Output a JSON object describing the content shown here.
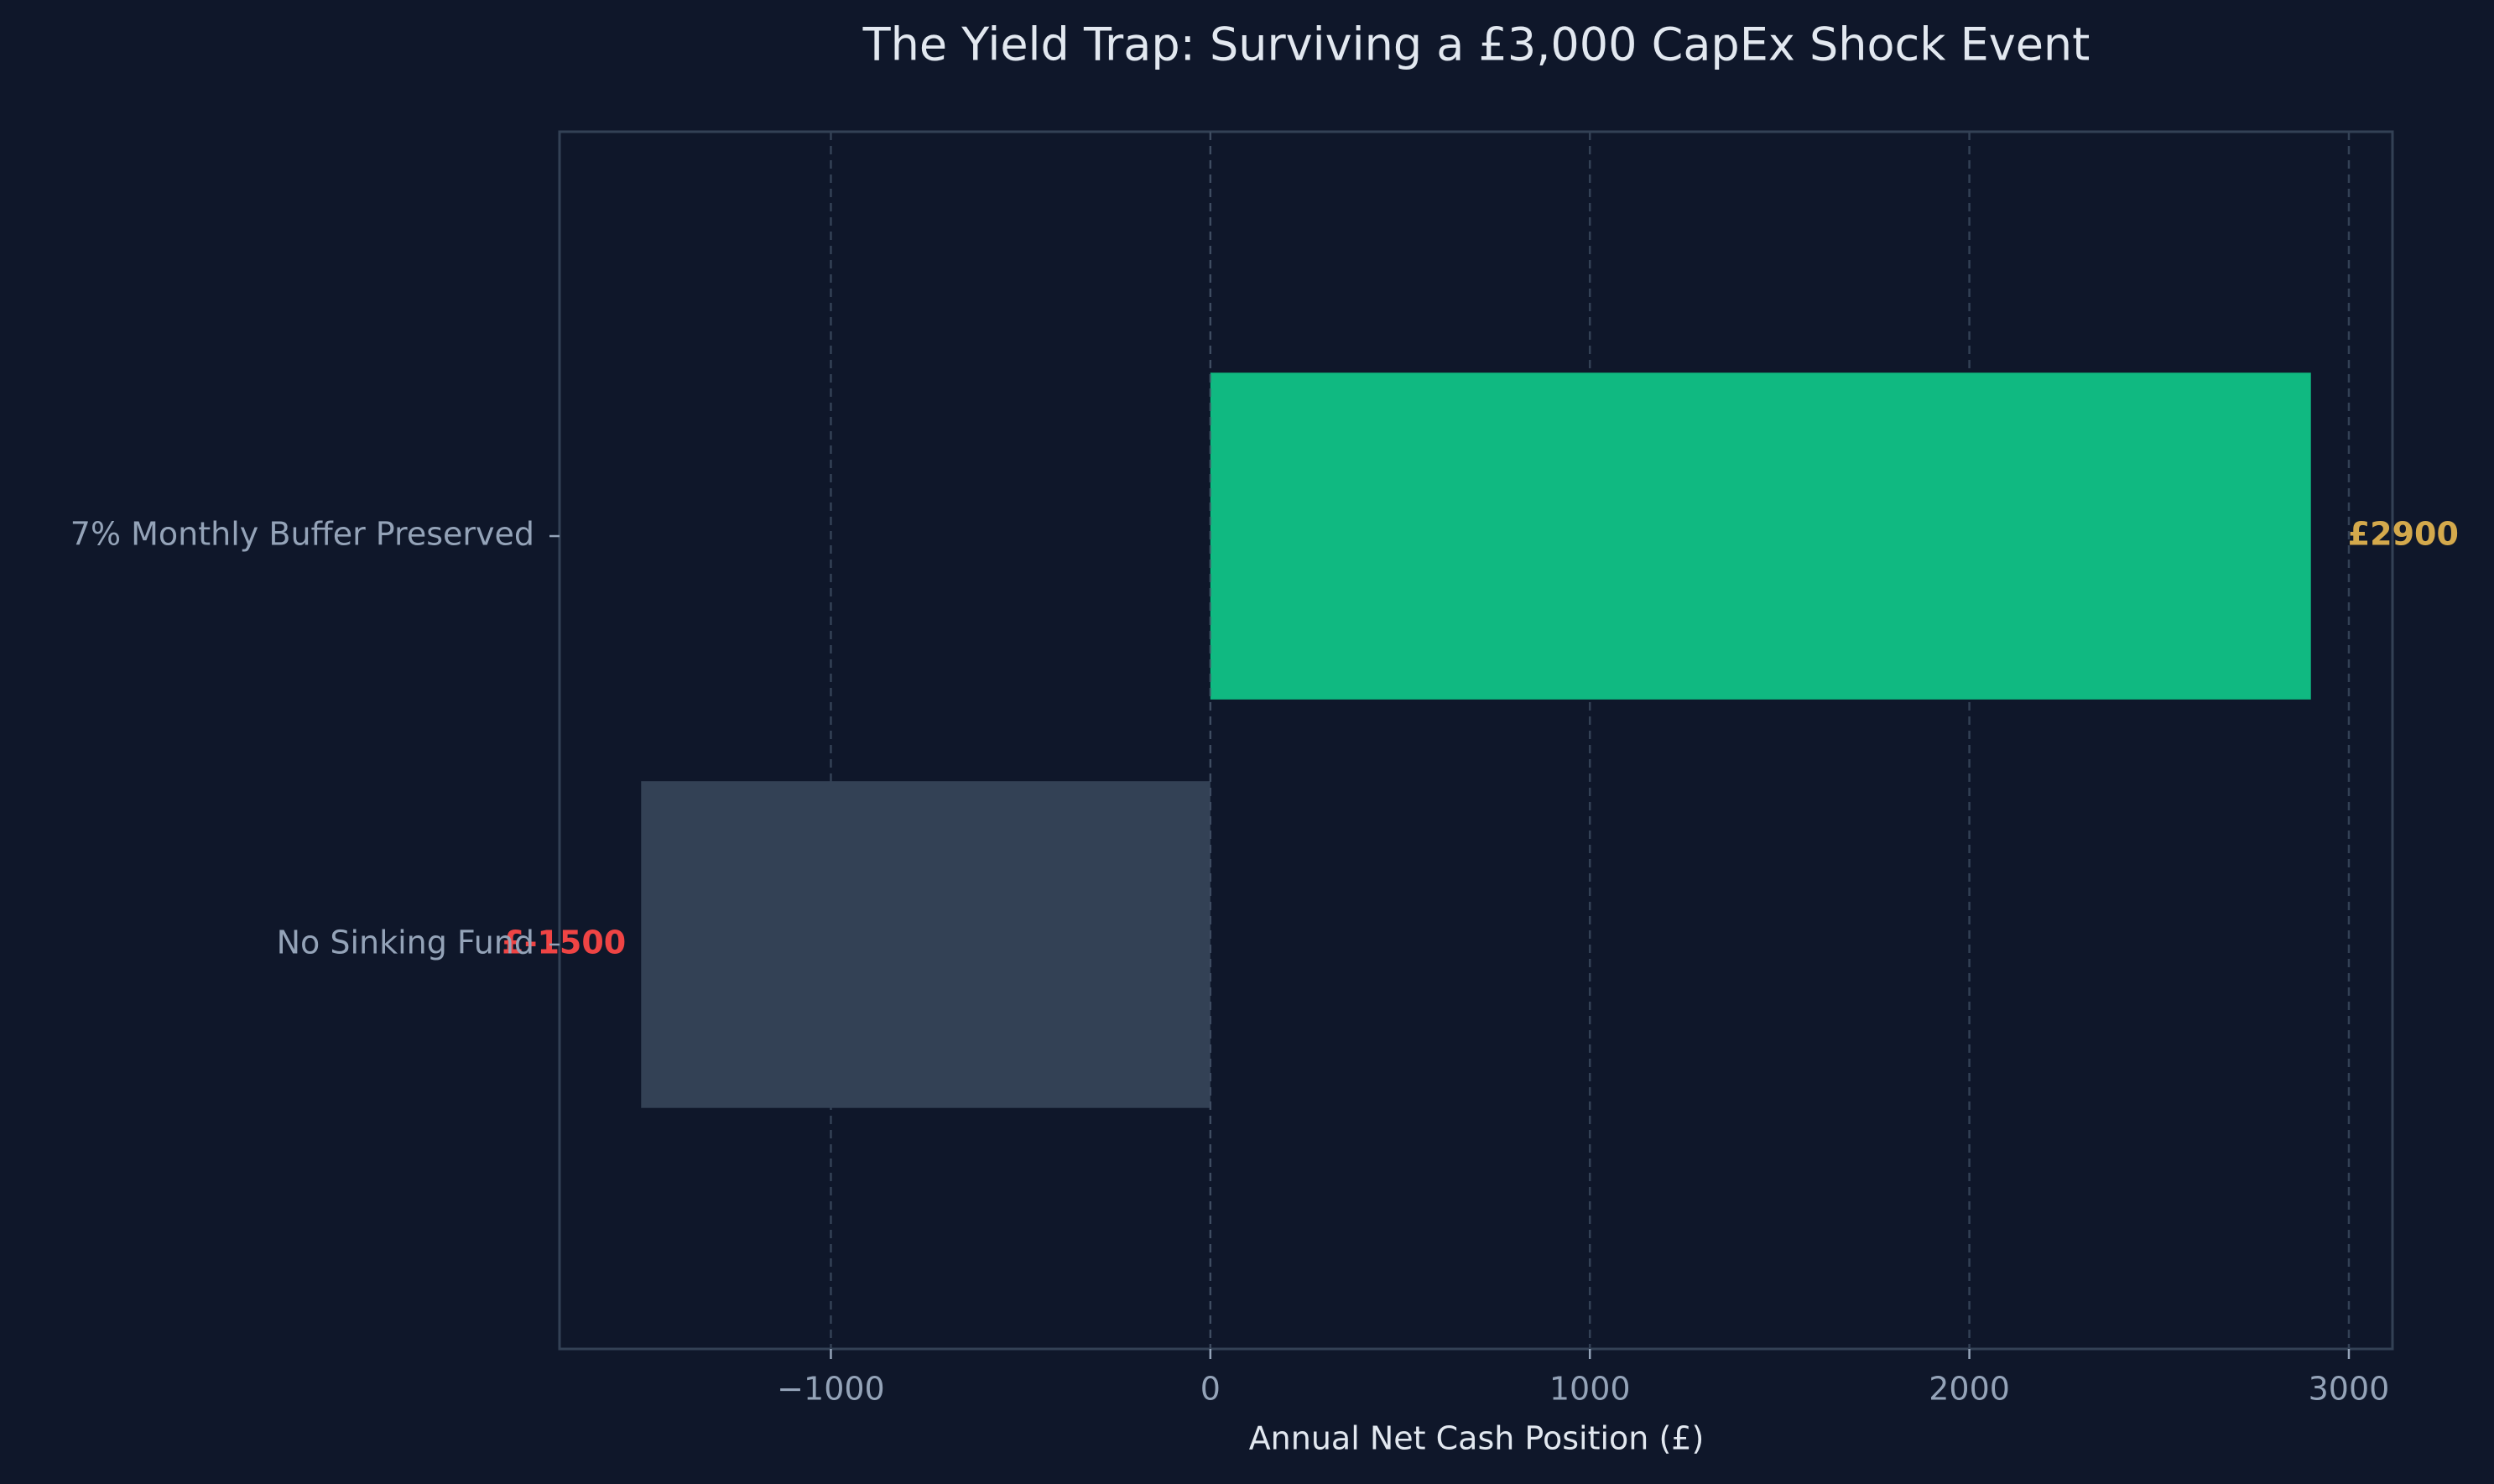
{
  "chart_data": {
    "type": "barh",
    "title": "The Yield Trap: Surviving a £3,000 CapEx Shock Event",
    "xlabel": "Annual Net Cash Position (£)",
    "categories": [
      "No Sinking Fund",
      "7% Monthly Buffer Preserved"
    ],
    "values": [
      -1500,
      2900
    ],
    "value_labels": [
      "£-1500",
      "£2900"
    ],
    "colors": [
      "#334155",
      "#10b981"
    ],
    "label_colors": [
      "#ef4444",
      "#d4a94c"
    ],
    "xlim": [
      -1715,
      3115
    ],
    "xticks": [
      {
        "value": -1000,
        "label": "−1000"
      },
      0,
      1000,
      2000,
      3000
    ],
    "grid": true
  }
}
